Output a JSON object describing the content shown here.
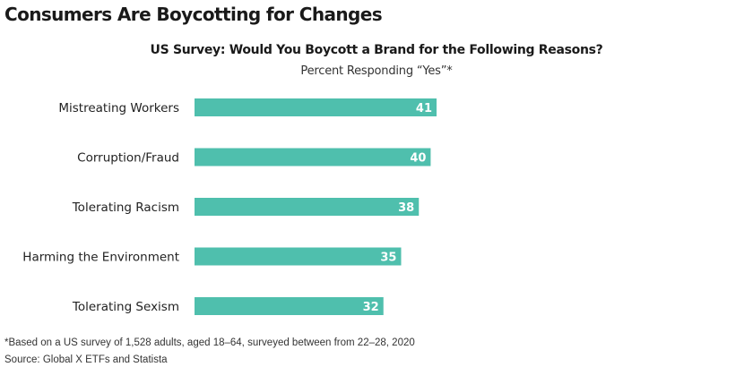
{
  "headline": "Consumers Are Boycotting for Changes",
  "footnote": "*Based on a US survey of 1,528 adults, aged 18–64, surveyed between from 22–28, 2020",
  "source": "Source: Global X ETFs and Statista",
  "colors": {
    "bar": "#4fbfad",
    "bar_label": "#ffffff",
    "category_text": "#222222"
  },
  "chart_data": {
    "type": "bar",
    "orientation": "horizontal",
    "title": "US Survey: Would You Boycott a Brand for the Following Reasons?",
    "subtitle": "Percent Responding “Yes”*",
    "xlabel": "",
    "ylabel": "",
    "xlim": [
      0,
      41
    ],
    "grid": false,
    "categories": [
      "Mistreating Workers",
      "Corruption/Fraud",
      "Tolerating Racism",
      "Harming the Environment",
      "Tolerating Sexism"
    ],
    "values": [
      41,
      40,
      38,
      35,
      32
    ]
  }
}
